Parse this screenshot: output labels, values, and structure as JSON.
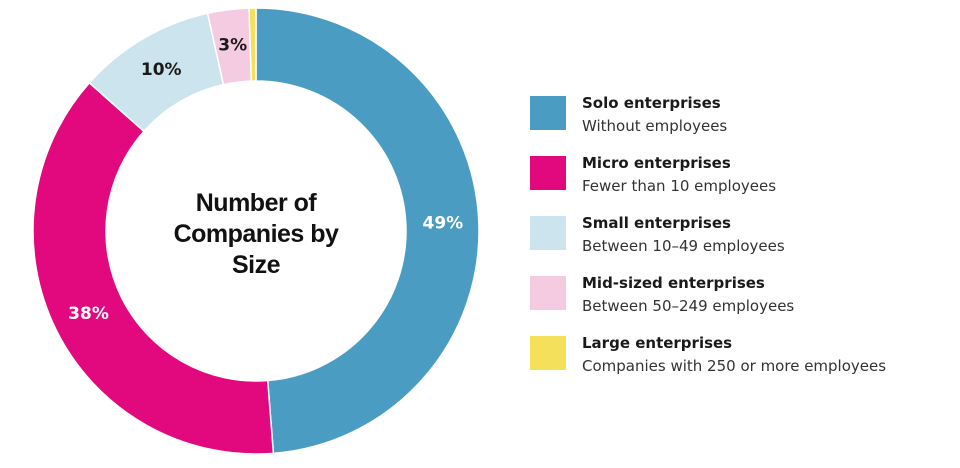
{
  "chart_data": {
    "type": "donut",
    "title": "Number of Companies by Size",
    "categories": [
      "Solo enterprises",
      "Micro enterprises",
      "Small enterprises",
      "Mid-sized enterprises",
      "Large enterprises"
    ],
    "descriptions": [
      "Without employees",
      "Fewer than 10 employees",
      "Between 10–49 employees",
      "Between 50–249 employees",
      "Companies with 250 or more employees"
    ],
    "values": [
      49,
      38,
      10,
      3,
      0.5
    ],
    "value_labels": [
      "49%",
      "38%",
      "10%",
      "3%",
      null
    ],
    "colors": [
      "#4a9cc3",
      "#e2087e",
      "#cbe4ed",
      "#f5cbe1",
      "#f4e05a"
    ],
    "label_colors": [
      "#ffffff",
      "#ffffff",
      "#1a1a1a",
      "#1a1a1a",
      "#1a1a1a"
    ],
    "legend": "right"
  }
}
